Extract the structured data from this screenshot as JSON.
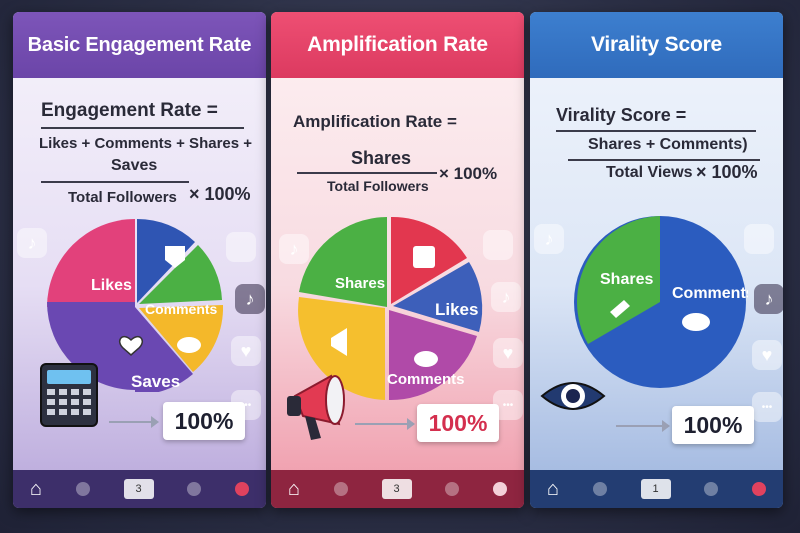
{
  "panels": [
    {
      "title": "Basic Engagement Rate",
      "formula": {
        "lhs": "Engagement Rate =",
        "numerator_1": "Likes + Comments + Shares +",
        "numerator_2": "Saves",
        "denominator": "Total Followers",
        "multiplier": "× 100%"
      },
      "pie_labels": [
        "Likes",
        "Comments",
        "Saves"
      ],
      "pie_colors": [
        "#e2417b",
        "#2f55b3",
        "#4bb044",
        "#f4b82a",
        "#6a48b2"
      ],
      "result": "100%",
      "nav_number": "3"
    },
    {
      "title": "Amplification Rate",
      "formula": {
        "lhs": "Amplification Rate =",
        "numerator": "Shares",
        "denominator": "Total Followers",
        "multiplier": "× 100%"
      },
      "pie_labels": [
        "Shares",
        "Likes",
        "Comments"
      ],
      "pie_colors": [
        "#4bb044",
        "#e2374f",
        "#3d5fba",
        "#b04aa8",
        "#f5bf2e"
      ],
      "result": "100%",
      "nav_number": "3"
    },
    {
      "title": "Virality Score",
      "formula": {
        "lhs": "Virality Score =",
        "numerator": "Shares + Comments)",
        "denominator": "Total Views",
        "multiplier": "× 100%"
      },
      "pie_labels": [
        "Shares",
        "Comments"
      ],
      "pie_colors": [
        "#4bb044",
        "#2b5cbf"
      ],
      "result": "100%",
      "nav_number": "1"
    }
  ],
  "icons": {
    "tiktok": "♪",
    "heart": "♥",
    "more": "•••",
    "home": "⌂"
  }
}
